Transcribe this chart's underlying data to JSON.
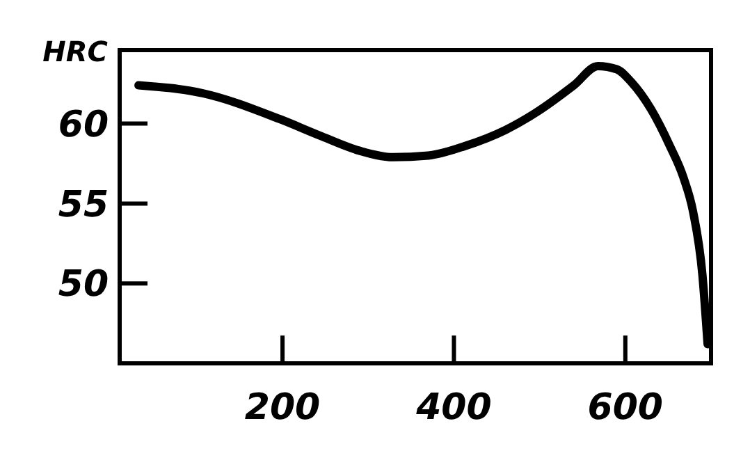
{
  "chart_data": {
    "type": "line",
    "ylabel": "HRC",
    "xlim": [
      10,
      700
    ],
    "ylim": [
      45,
      64.6
    ],
    "xticks": [
      200,
      400,
      600
    ],
    "yticks": [
      50,
      55,
      60
    ],
    "grid": false,
    "marker": "none",
    "line_style": "solid",
    "series": [
      {
        "color": "#000000",
        "x": [
          32,
          107,
          196,
          246,
          290,
          329,
          370,
          413,
          460,
          496,
          540,
          568,
          590,
          607,
          630,
          652,
          668,
          679,
          690,
          696
        ],
        "values": [
          62.4,
          61.9,
          60.3,
          59.2,
          58.3,
          57.9,
          58.0,
          58.6,
          59.6,
          60.7,
          62.4,
          63.6,
          63.4,
          62.6,
          60.9,
          58.6,
          56.6,
          54.5,
          50.5,
          46.2
        ]
      }
    ]
  }
}
